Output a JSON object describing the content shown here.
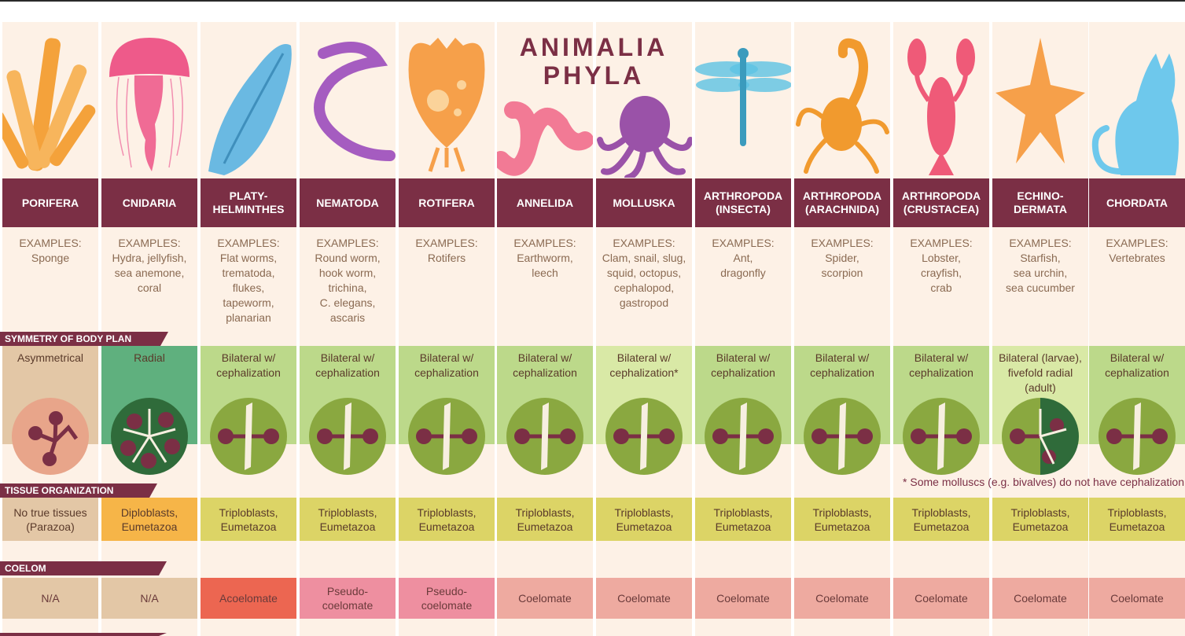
{
  "title": [
    "ANIMALIA",
    "PHYLA"
  ],
  "sections": {
    "symmetry": "SYMMETRY OF BODY PLAN",
    "tissue": "TISSUE ORGANIZATION",
    "coelom": "COELOM"
  },
  "examples_label": "EXAMPLES:",
  "footnote": "* Some molluscs (e.g. bivalves) do not have cephalization",
  "colors": {
    "header": "#7b2f45",
    "column_bg": "#fdf1e6",
    "tan": "#e3c7a6",
    "radial_green": "#5fb07e",
    "bilateral_green": "#bcd98a",
    "light_green": "#d9e9a6",
    "diplo_orange": "#f6b548",
    "triplo_yellow": "#dcd466",
    "acoelomate": "#ec6651",
    "pseudo": "#ee8fa0",
    "coelomate": "#eeaaa0"
  },
  "phyla": [
    {
      "name": [
        "PORIFERA"
      ],
      "examples": [
        "Sponge"
      ],
      "symmetry": [
        "Asymmetrical"
      ],
      "symmetry_type": "asym",
      "tissue": [
        "No true tissues",
        "(Parazoa)"
      ],
      "coelom": [
        "N/A"
      ],
      "art": "sponge-illustration"
    },
    {
      "name": [
        "CNIDARIA"
      ],
      "examples": [
        "Hydra, jellyfish,",
        "sea anemone,",
        "coral"
      ],
      "symmetry": [
        "Radial"
      ],
      "symmetry_type": "radial",
      "tissue": [
        "Diploblasts,",
        "Eumetazoa"
      ],
      "coelom": [
        "N/A"
      ],
      "art": "jellyfish-illustration"
    },
    {
      "name": [
        "PLATY-",
        "HELMINTHES"
      ],
      "examples": [
        "Flat worms,",
        "trematoda,",
        "flukes,",
        "tapeworm,",
        "planarian"
      ],
      "symmetry": [
        "Bilateral w/",
        "cephalization"
      ],
      "symmetry_type": "bilateral",
      "tissue": [
        "Triploblasts,",
        "Eumetazoa"
      ],
      "coelom": [
        "Acoelomate"
      ],
      "art": "flatworm-illustration"
    },
    {
      "name": [
        "NEMATODA"
      ],
      "examples": [
        "Round worm,",
        "hook worm,",
        "trichina,",
        "C. elegans,",
        "ascaris"
      ],
      "symmetry": [
        "Bilateral w/",
        "cephalization"
      ],
      "symmetry_type": "bilateral",
      "tissue": [
        "Triploblasts,",
        "Eumetazoa"
      ],
      "coelom": [
        "Pseudo-",
        "coelomate"
      ],
      "art": "roundworm-illustration"
    },
    {
      "name": [
        "ROTIFERA"
      ],
      "examples": [
        "Rotifers"
      ],
      "symmetry": [
        "Bilateral w/",
        "cephalization"
      ],
      "symmetry_type": "bilateral",
      "tissue": [
        "Triploblasts,",
        "Eumetazoa"
      ],
      "coelom": [
        "Pseudo-",
        "coelomate"
      ],
      "art": "rotifer-illustration"
    },
    {
      "name": [
        "ANNELIDA"
      ],
      "examples": [
        "Earthworm,",
        "leech"
      ],
      "symmetry": [
        "Bilateral w/",
        "cephalization"
      ],
      "symmetry_type": "bilateral",
      "tissue": [
        "Triploblasts,",
        "Eumetazoa"
      ],
      "coelom": [
        "Coelomate"
      ],
      "art": "earthworm-illustration"
    },
    {
      "name": [
        "MOLLUSKA"
      ],
      "examples": [
        "Clam, snail, slug,",
        "squid, octopus,",
        "cephalopod,",
        "gastropod"
      ],
      "symmetry": [
        "Bilateral w/",
        "cephalization*"
      ],
      "symmetry_type": "bilateral-light",
      "tissue": [
        "Triploblasts,",
        "Eumetazoa"
      ],
      "coelom": [
        "Coelomate"
      ],
      "art": "octopus-illustration"
    },
    {
      "name": [
        "ARTHROPODA",
        "(INSECTA)"
      ],
      "examples": [
        "Ant,",
        "dragonfly"
      ],
      "symmetry": [
        "Bilateral w/",
        "cephalization"
      ],
      "symmetry_type": "bilateral",
      "tissue": [
        "Triploblasts,",
        "Eumetazoa"
      ],
      "coelom": [
        "Coelomate"
      ],
      "art": "dragonfly-illustration"
    },
    {
      "name": [
        "ARTHROPODA",
        "(ARACHNIDA)"
      ],
      "examples": [
        "Spider,",
        "scorpion"
      ],
      "symmetry": [
        "Bilateral w/",
        "cephalization"
      ],
      "symmetry_type": "bilateral",
      "tissue": [
        "Triploblasts,",
        "Eumetazoa"
      ],
      "coelom": [
        "Coelomate"
      ],
      "art": "scorpion-illustration"
    },
    {
      "name": [
        "ARTHROPODA",
        "(CRUSTACEA)"
      ],
      "examples": [
        "Lobster,",
        "crayfish,",
        "crab"
      ],
      "symmetry": [
        "Bilateral w/",
        "cephalization"
      ],
      "symmetry_type": "bilateral",
      "tissue": [
        "Triploblasts,",
        "Eumetazoa"
      ],
      "coelom": [
        "Coelomate"
      ],
      "art": "lobster-illustration"
    },
    {
      "name": [
        "ECHINO-",
        "DERMATA"
      ],
      "examples": [
        "Starfish,",
        "sea urchin,",
        "sea cucumber"
      ],
      "symmetry": [
        "Bilateral (larvae),",
        "fivefold radial",
        "(adult)"
      ],
      "symmetry_type": "mixed",
      "tissue": [
        "Triploblasts,",
        "Eumetazoa"
      ],
      "coelom": [
        "Coelomate"
      ],
      "art": "starfish-illustration"
    },
    {
      "name": [
        "CHORDATA"
      ],
      "examples": [
        "Vertebrates"
      ],
      "symmetry": [
        "Bilateral w/",
        "cephalization"
      ],
      "symmetry_type": "bilateral",
      "tissue": [
        "Triploblasts,",
        "Eumetazoa"
      ],
      "coelom": [
        "Coelomate"
      ],
      "art": "cat-illustration"
    }
  ]
}
